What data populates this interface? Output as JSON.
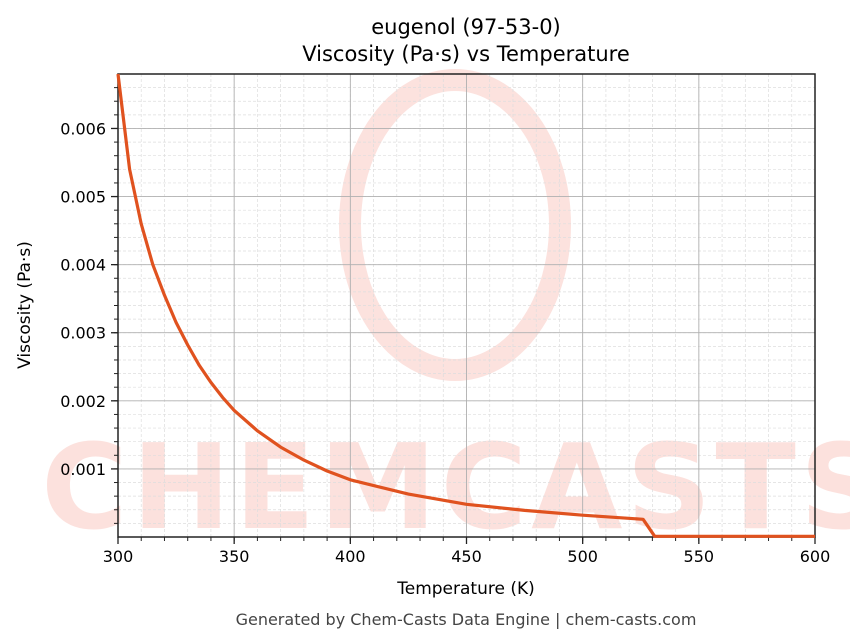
{
  "chart_data": {
    "type": "line",
    "title": "eugenol (97-53-0)",
    "subtitle": "Viscosity (Pa·s) vs Temperature",
    "xlabel": "Temperature (K)",
    "ylabel": "Viscosity (Pa·s)",
    "xlim": [
      300,
      600
    ],
    "ylim": [
      0,
      0.0068
    ],
    "xticks": [
      300,
      350,
      400,
      450,
      500,
      550,
      600
    ],
    "xtick_labels": [
      "300",
      "350",
      "400",
      "450",
      "500",
      "550",
      "600"
    ],
    "yticks": [
      0.001,
      0.002,
      0.003,
      0.004,
      0.005,
      0.006
    ],
    "ytick_labels": [
      "0.001",
      "0.002",
      "0.003",
      "0.004",
      "0.005",
      "0.006"
    ],
    "grid": true,
    "series": [
      {
        "name": "Viscosity",
        "color": "#e0521f",
        "x": [
          300,
          305,
          310,
          315,
          320,
          325,
          330,
          335,
          340,
          345,
          350,
          360,
          370,
          380,
          390,
          400,
          425,
          450,
          475,
          500,
          526,
          531,
          550,
          600
        ],
        "y": [
          0.0068,
          0.0054,
          0.0046,
          0.004,
          0.00355,
          0.00315,
          0.00282,
          0.00252,
          0.00227,
          0.00205,
          0.00186,
          0.00156,
          0.00132,
          0.00113,
          0.00097,
          0.00084,
          0.00063,
          0.00048,
          0.00039,
          0.00032,
          0.00026,
          1e-05,
          1e-05,
          1e-05
        ]
      }
    ]
  },
  "footer": "Generated by Chem-Casts Data Engine | chem-casts.com",
  "watermark": "CHEMCASTS"
}
